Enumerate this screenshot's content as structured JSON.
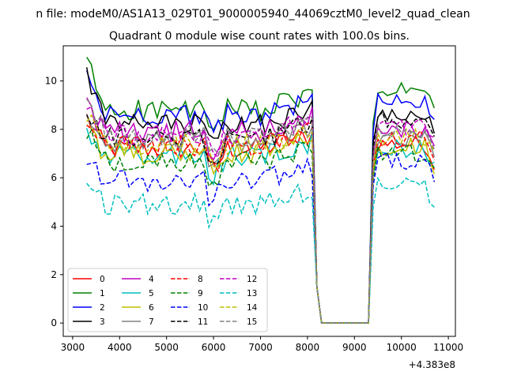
{
  "figure_title": "n file: modeM0/AS1A13_029T01_9000005940_44069cztM0_level2_quad_clean",
  "chart_data": {
    "type": "line",
    "title": "Quadrant 0 module wise count rates with 100.0s bins.",
    "xlabel": "",
    "ylabel": "",
    "x_offset_label": "+4.383e8",
    "xlim": [
      2800,
      11150
    ],
    "ylim": [
      -0.55,
      11.45
    ],
    "xticks": [
      3000,
      4000,
      5000,
      6000,
      7000,
      8000,
      9000,
      10000,
      11000
    ],
    "yticks": [
      0,
      2,
      4,
      6,
      8,
      10
    ],
    "grid": false,
    "legend": {
      "placement": "lower-left",
      "columns": 4
    },
    "gap": {
      "start": 8100,
      "drop": 8200,
      "floor_from": 8300,
      "floor_to": 9300,
      "rise": 9400
    },
    "x_start": 3300,
    "x_step": 100,
    "x_end": 10700,
    "series": [
      {
        "name": "0",
        "color": "#ff0000",
        "dash": "solid",
        "level": 7.2,
        "start": 8.5,
        "endlevel": 7.0
      },
      {
        "name": "1",
        "color": "#008000",
        "dash": "solid",
        "level": 8.8,
        "start": 10.8,
        "endlevel": 9.2
      },
      {
        "name": "2",
        "color": "#0000ff",
        "dash": "solid",
        "level": 8.6,
        "start": 10.2,
        "endlevel": 8.8
      },
      {
        "name": "3",
        "color": "#000000",
        "dash": "solid",
        "level": 8.2,
        "start": 10.3,
        "endlevel": 8.3
      },
      {
        "name": "4",
        "color": "#bf00bf",
        "dash": "solid",
        "level": 7.9,
        "start": 9.0,
        "endlevel": 7.6
      },
      {
        "name": "5",
        "color": "#00bfbf",
        "dash": "solid",
        "level": 6.9,
        "start": 7.7,
        "endlevel": 6.8
      },
      {
        "name": "6",
        "color": "#bfbf00",
        "dash": "solid",
        "level": 7.0,
        "start": 7.8,
        "endlevel": 6.9
      },
      {
        "name": "7",
        "color": "#808080",
        "dash": "solid",
        "level": 7.5,
        "start": 8.2,
        "endlevel": 7.3
      },
      {
        "name": "8",
        "color": "#ff0000",
        "dash": "dashed",
        "level": 7.3,
        "start": 8.6,
        "endlevel": 7.2
      },
      {
        "name": "9",
        "color": "#008000",
        "dash": "dashed",
        "level": 6.7,
        "start": 8.0,
        "endlevel": 6.6
      },
      {
        "name": "10",
        "color": "#0000ff",
        "dash": "dashed",
        "level": 5.9,
        "start": 6.9,
        "endlevel": 6.3
      },
      {
        "name": "11",
        "color": "#000000",
        "dash": "dashed",
        "level": 7.6,
        "start": 8.9,
        "endlevel": 8.0
      },
      {
        "name": "12",
        "color": "#bf00bf",
        "dash": "dashed",
        "level": 7.8,
        "start": 9.1,
        "endlevel": 7.7
      },
      {
        "name": "13",
        "color": "#00bfbf",
        "dash": "dashed",
        "level": 4.9,
        "start": 6.0,
        "endlevel": 5.3
      },
      {
        "name": "14",
        "color": "#bfbf00",
        "dash": "dashed",
        "level": 7.4,
        "start": 8.5,
        "endlevel": 7.3
      },
      {
        "name": "15",
        "color": "#808080",
        "dash": "dashed",
        "level": 7.7,
        "start": 9.4,
        "endlevel": 7.5
      }
    ]
  }
}
